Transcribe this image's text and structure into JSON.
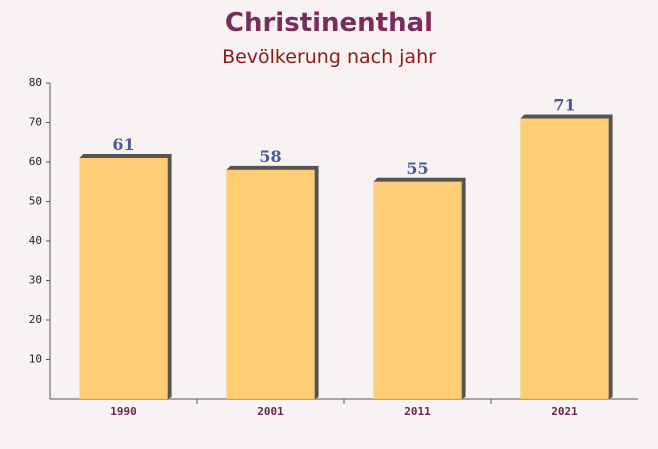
{
  "chart_data": {
    "type": "bar",
    "title": "Christinenthal",
    "subtitle": "Bevölkerung nach jahr",
    "categories": [
      "1990",
      "2001",
      "2011",
      "2021"
    ],
    "values": [
      61,
      58,
      55,
      71
    ],
    "color": "#ffc966",
    "ylim": [
      0,
      80
    ],
    "yticks": [
      10,
      20,
      30,
      40,
      50,
      60,
      70,
      80
    ]
  }
}
